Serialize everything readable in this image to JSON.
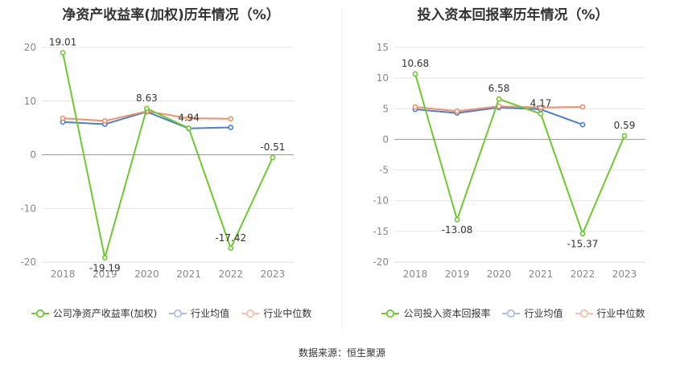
{
  "chart_data": [
    {
      "type": "line",
      "title": "净资产收益率(加权)历年情况（%）",
      "categories": [
        "2018",
        "2019",
        "2020",
        "2021",
        "2022",
        "2023"
      ],
      "ylim": [
        -20,
        20
      ],
      "yticks": [
        20,
        10,
        0,
        -10,
        -20
      ],
      "grid": true,
      "legend_position": "bottom",
      "series": [
        {
          "name": "公司净资产收益率(加权)",
          "color": "#6ec82f",
          "values": [
            19.01,
            -19.19,
            8.63,
            4.94,
            -17.42,
            -0.51
          ],
          "labels": [
            "19.01",
            "-19.19",
            "8.63",
            "4.94",
            "-17.42",
            "-0.51"
          ]
        },
        {
          "name": "行业均值",
          "color": "#4a7fd6",
          "values": [
            6.1,
            5.7,
            8.0,
            4.9,
            5.1,
            null
          ]
        },
        {
          "name": "行业中位数",
          "color": "#f0906a",
          "values": [
            6.8,
            6.3,
            8.1,
            6.8,
            6.7,
            null
          ]
        }
      ]
    },
    {
      "type": "line",
      "title": "投入资本回报率历年情况（%）",
      "categories": [
        "2018",
        "2019",
        "2020",
        "2021",
        "2022",
        "2023"
      ],
      "ylim": [
        -20,
        15
      ],
      "yticks": [
        15,
        10,
        5,
        0,
        -5,
        -10,
        -15,
        -20
      ],
      "grid": true,
      "legend_position": "bottom",
      "series": [
        {
          "name": "公司投入资本回报率",
          "color": "#6ec82f",
          "values": [
            10.68,
            -13.08,
            6.58,
            4.17,
            -15.37,
            0.59
          ],
          "labels": [
            "10.68",
            "-13.08",
            "6.58",
            "4.17",
            "-15.37",
            "0.59"
          ]
        },
        {
          "name": "行业均值",
          "color": "#4a7fd6",
          "values": [
            4.9,
            4.3,
            5.2,
            4.9,
            2.4,
            null
          ]
        },
        {
          "name": "行业中位数",
          "color": "#f0906a",
          "values": [
            5.3,
            4.6,
            5.4,
            5.2,
            5.3,
            null
          ]
        }
      ]
    }
  ],
  "footer": "数据来源：恒生聚源"
}
